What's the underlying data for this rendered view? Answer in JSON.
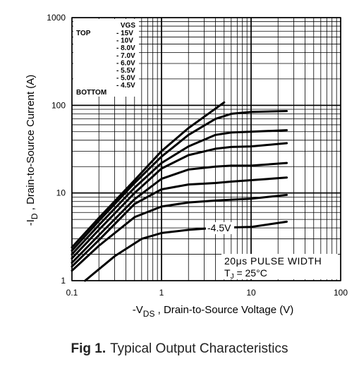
{
  "chart_data": {
    "type": "line",
    "xlabel_main": "-V",
    "xlabel_sub": "DS",
    "xlabel_rest": " , Drain-to-Source Voltage (V)",
    "ylabel_main": "-I",
    "ylabel_sub": "D",
    "ylabel_rest": " , Drain-to-Source Current (A)",
    "x_scale": "log",
    "y_scale": "log",
    "xlim": [
      0.1,
      100
    ],
    "ylim": [
      1,
      1000
    ],
    "x_ticks": [
      "0.1",
      "1",
      "10",
      "100"
    ],
    "y_ticks": [
      "1",
      "10",
      "100",
      "1000"
    ],
    "grid": true,
    "legend": {
      "header": "VGS",
      "top_label": "TOP",
      "bottom_label": "BOTTOM",
      "entries": [
        "- 15V",
        "- 10V",
        "- 8.0V",
        "- 7.0V",
        "- 6.0V",
        "- 5.5V",
        "- 5.0V",
        "- 4.5V"
      ]
    },
    "annotations": {
      "curve_label": "-4.5V",
      "pulse": "20μs PULSE WIDTH",
      "tj_main": "T",
      "tj_sub": "J",
      "tj_rest": " = 25°C"
    },
    "series": [
      {
        "x": [
          0.1,
          0.2,
          0.5,
          1,
          2,
          5
        ],
        "y": [
          2.4,
          5.2,
          14,
          30,
          55,
          108
        ]
      },
      {
        "x": [
          0.1,
          0.2,
          0.5,
          1,
          2,
          4,
          6,
          10,
          25
        ],
        "y": [
          2.2,
          4.8,
          13,
          26,
          46,
          70,
          80,
          84,
          86
        ]
      },
      {
        "x": [
          0.1,
          0.2,
          0.5,
          1,
          2,
          4,
          6,
          10,
          25
        ],
        "y": [
          2.0,
          4.3,
          11.5,
          22,
          34,
          46,
          49,
          50,
          52
        ]
      },
      {
        "x": [
          0.1,
          0.2,
          0.5,
          1,
          2,
          4,
          6,
          10,
          25
        ],
        "y": [
          1.8,
          3.8,
          10,
          19,
          27,
          32,
          33.5,
          34,
          37
        ]
      },
      {
        "x": [
          0.1,
          0.2,
          0.5,
          1,
          2,
          4,
          6,
          10,
          25
        ],
        "y": [
          1.6,
          3.3,
          8.5,
          14.5,
          18.5,
          20,
          20.5,
          20.5,
          22
        ]
      },
      {
        "x": [
          0.1,
          0.2,
          0.5,
          1,
          2,
          4,
          6,
          10,
          25
        ],
        "y": [
          1.45,
          2.9,
          7.5,
          11,
          12.5,
          13,
          13.5,
          14,
          15
        ]
      },
      {
        "x": [
          0.1,
          0.2,
          0.5,
          1,
          2,
          4,
          6,
          10,
          25
        ],
        "y": [
          1.3,
          2.5,
          5.3,
          7,
          7.8,
          8.2,
          8.4,
          8.6,
          9.5
        ]
      },
      {
        "x": [
          0.14,
          0.3,
          0.6,
          1,
          2,
          4,
          10,
          25
        ],
        "y": [
          1.0,
          1.9,
          3.0,
          3.5,
          3.8,
          4.0,
          4.1,
          4.7
        ]
      }
    ]
  },
  "caption": {
    "fig_num": "Fig 1.",
    "text": "Typical Output Characteristics"
  }
}
